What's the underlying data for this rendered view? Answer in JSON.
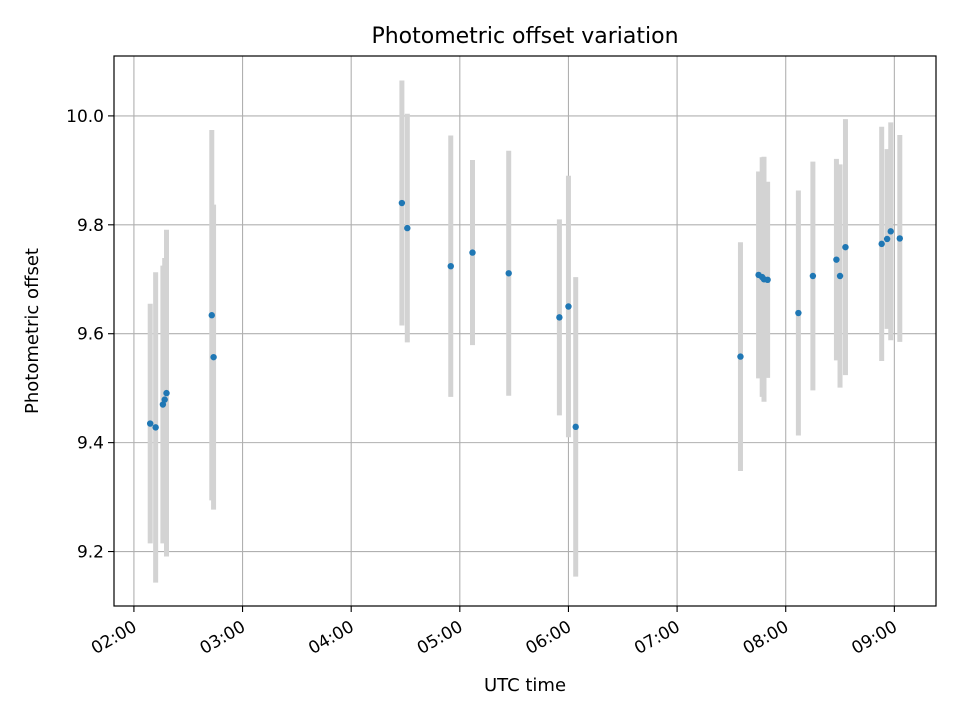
{
  "chart_data": {
    "type": "scatter",
    "title": "Photometric offset variation",
    "xlabel": "UTC time",
    "ylabel": "Photometric offset",
    "xlim": [
      "01:49",
      "09:23"
    ],
    "ylim": [
      9.1,
      10.11
    ],
    "grid": true,
    "legend": "none",
    "x_ticks": [
      "02:00",
      "03:00",
      "04:00",
      "05:00",
      "06:00",
      "07:00",
      "08:00",
      "09:00"
    ],
    "y_ticks": [
      "9.2",
      "9.4",
      "9.6",
      "9.8",
      "10.0"
    ],
    "point_color": "#1f77b4",
    "errorbar_color": "#d3d3d3",
    "points": [
      {
        "x": "02:09",
        "y": 9.435,
        "err": 0.22
      },
      {
        "x": "02:12",
        "y": 9.428,
        "err": 0.285
      },
      {
        "x": "02:16",
        "y": 9.47,
        "err": 0.255
      },
      {
        "x": "02:17",
        "y": 9.479,
        "err": 0.26
      },
      {
        "x": "02:18",
        "y": 9.491,
        "err": 0.3
      },
      {
        "x": "02:43",
        "y": 9.634,
        "err": 0.34
      },
      {
        "x": "02:44",
        "y": 9.557,
        "err": 0.28
      },
      {
        "x": "04:28",
        "y": 9.84,
        "err": 0.225
      },
      {
        "x": "04:31",
        "y": 9.794,
        "err": 0.21
      },
      {
        "x": "04:55",
        "y": 9.724,
        "err": 0.24
      },
      {
        "x": "05:07",
        "y": 9.749,
        "err": 0.17
      },
      {
        "x": "05:27",
        "y": 9.711,
        "err": 0.225
      },
      {
        "x": "05:55",
        "y": 9.63,
        "err": 0.18
      },
      {
        "x": "06:00",
        "y": 9.65,
        "err": 0.24
      },
      {
        "x": "06:04",
        "y": 9.429,
        "err": 0.275
      },
      {
        "x": "07:35",
        "y": 9.558,
        "err": 0.21
      },
      {
        "x": "07:45",
        "y": 9.708,
        "err": 0.19
      },
      {
        "x": "07:47",
        "y": 9.704,
        "err": 0.22
      },
      {
        "x": "07:48",
        "y": 9.7,
        "err": 0.225
      },
      {
        "x": "07:50",
        "y": 9.699,
        "err": 0.18
      },
      {
        "x": "08:07",
        "y": 9.638,
        "err": 0.225
      },
      {
        "x": "08:15",
        "y": 9.706,
        "err": 0.21
      },
      {
        "x": "08:28",
        "y": 9.736,
        "err": 0.185
      },
      {
        "x": "08:30",
        "y": 9.706,
        "err": 0.205
      },
      {
        "x": "08:33",
        "y": 9.759,
        "err": 0.235
      },
      {
        "x": "08:53",
        "y": 9.765,
        "err": 0.215
      },
      {
        "x": "08:56",
        "y": 9.774,
        "err": 0.165
      },
      {
        "x": "08:58",
        "y": 9.788,
        "err": 0.2
      },
      {
        "x": "09:03",
        "y": 9.775,
        "err": 0.19
      }
    ]
  }
}
